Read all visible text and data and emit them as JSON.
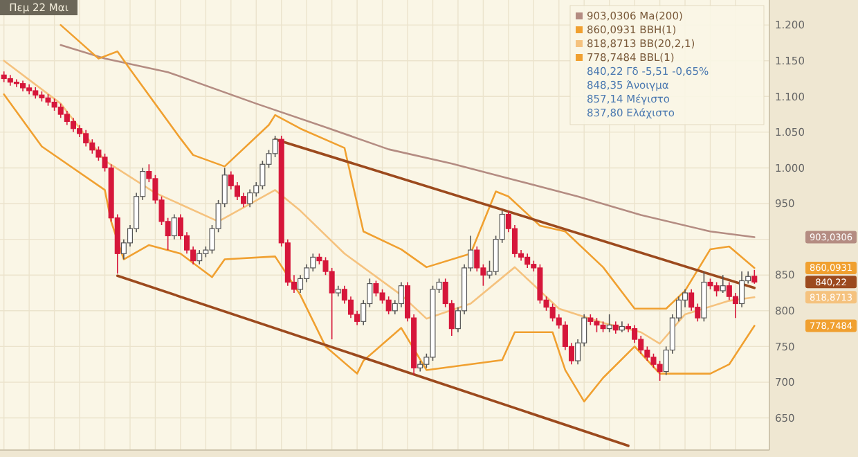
{
  "chart_data": {
    "type": "candlestick",
    "title": "Πεμ 22 Μαι",
    "categories": [
      null,
      null,
      null,
      null,
      null,
      null,
      null,
      null,
      null,
      null,
      null,
      null,
      null,
      null,
      null,
      null,
      null,
      null,
      null,
      null,
      null,
      null,
      null,
      null,
      null,
      null,
      null,
      null,
      null,
      null,
      null,
      null,
      null,
      null,
      null,
      null,
      null,
      null,
      null,
      null,
      null,
      null,
      null,
      null,
      null,
      null,
      null,
      null,
      null,
      null,
      null,
      null,
      null,
      null,
      null,
      null,
      null,
      null,
      null,
      null,
      null,
      null,
      null,
      null,
      null,
      null,
      null,
      null,
      null,
      null,
      null,
      null,
      null,
      null,
      null,
      null,
      null,
      null,
      null,
      null,
      null,
      null,
      null,
      null,
      null,
      null,
      null,
      null,
      null,
      null,
      null,
      null,
      null,
      null,
      null,
      null,
      null,
      null,
      null,
      null,
      null,
      null,
      null,
      null,
      null,
      null,
      null,
      null,
      null,
      null,
      null,
      null,
      null,
      null,
      null,
      null,
      null,
      null,
      null,
      null
    ],
    "ohlc": [
      [
        1130,
        1135,
        1120,
        1125
      ],
      [
        1125,
        1130,
        1115,
        1120
      ],
      [
        1120,
        1124,
        1113,
        1118
      ],
      [
        1118,
        1122,
        1107,
        1112
      ],
      [
        1112,
        1117,
        1103,
        1108
      ],
      [
        1108,
        1113,
        1097,
        1102
      ],
      [
        1102,
        1107,
        1093,
        1098
      ],
      [
        1098,
        1103,
        1087,
        1092
      ],
      [
        1092,
        1097,
        1080,
        1085
      ],
      [
        1085,
        1090,
        1070,
        1075
      ],
      [
        1075,
        1080,
        1060,
        1065
      ],
      [
        1065,
        1070,
        1050,
        1055
      ],
      [
        1055,
        1060,
        1043,
        1048
      ],
      [
        1048,
        1053,
        1030,
        1035
      ],
      [
        1035,
        1040,
        1020,
        1025
      ],
      [
        1025,
        1030,
        1010,
        1015
      ],
      [
        1015,
        1020,
        995,
        1000
      ],
      [
        1000,
        1005,
        925,
        930
      ],
      [
        930,
        935,
        852,
        880
      ],
      [
        880,
        900,
        872,
        895
      ],
      [
        895,
        920,
        890,
        915
      ],
      [
        915,
        965,
        910,
        960
      ],
      [
        960,
        1000,
        955,
        995
      ],
      [
        995,
        1005,
        980,
        985
      ],
      [
        985,
        990,
        950,
        955
      ],
      [
        955,
        960,
        920,
        925
      ],
      [
        925,
        930,
        885,
        905
      ],
      [
        905,
        935,
        900,
        930
      ],
      [
        930,
        935,
        900,
        905
      ],
      [
        905,
        910,
        880,
        885
      ],
      [
        885,
        890,
        865,
        870
      ],
      [
        870,
        885,
        865,
        880
      ],
      [
        880,
        890,
        875,
        885
      ],
      [
        885,
        920,
        880,
        915
      ],
      [
        915,
        955,
        910,
        950
      ],
      [
        950,
        1000,
        945,
        990
      ],
      [
        990,
        995,
        970,
        975
      ],
      [
        975,
        980,
        955,
        960
      ],
      [
        960,
        965,
        945,
        950
      ],
      [
        950,
        970,
        945,
        965
      ],
      [
        965,
        980,
        960,
        975
      ],
      [
        975,
        1010,
        970,
        1005
      ],
      [
        1005,
        1025,
        1000,
        1020
      ],
      [
        1020,
        1045,
        1015,
        1040
      ],
      [
        1040,
        1045,
        890,
        895
      ],
      [
        895,
        900,
        835,
        840
      ],
      [
        840,
        850,
        825,
        830
      ],
      [
        830,
        850,
        825,
        845
      ],
      [
        845,
        865,
        840,
        860
      ],
      [
        860,
        880,
        855,
        875
      ],
      [
        875,
        880,
        865,
        870
      ],
      [
        870,
        875,
        850,
        855
      ],
      [
        855,
        860,
        760,
        825
      ],
      [
        825,
        835,
        820,
        830
      ],
      [
        830,
        835,
        810,
        815
      ],
      [
        815,
        820,
        790,
        795
      ],
      [
        795,
        800,
        780,
        785
      ],
      [
        785,
        815,
        780,
        810
      ],
      [
        810,
        845,
        805,
        838
      ],
      [
        838,
        842,
        820,
        825
      ],
      [
        825,
        830,
        810,
        815
      ],
      [
        815,
        820,
        795,
        800
      ],
      [
        800,
        815,
        795,
        810
      ],
      [
        810,
        840,
        805,
        835
      ],
      [
        835,
        840,
        785,
        790
      ],
      [
        790,
        795,
        710,
        720
      ],
      [
        720,
        730,
        715,
        725
      ],
      [
        725,
        740,
        720,
        735
      ],
      [
        735,
        835,
        730,
        830
      ],
      [
        830,
        845,
        825,
        840
      ],
      [
        840,
        845,
        805,
        810
      ],
      [
        810,
        815,
        765,
        775
      ],
      [
        775,
        805,
        770,
        800
      ],
      [
        800,
        865,
        795,
        860
      ],
      [
        860,
        905,
        855,
        885
      ],
      [
        885,
        890,
        855,
        860
      ],
      [
        860,
        865,
        835,
        850
      ],
      [
        850,
        870,
        845,
        855
      ],
      [
        855,
        905,
        850,
        900
      ],
      [
        900,
        940,
        895,
        935
      ],
      [
        935,
        940,
        910,
        915
      ],
      [
        915,
        920,
        875,
        880
      ],
      [
        880,
        885,
        870,
        875
      ],
      [
        875,
        880,
        860,
        865
      ],
      [
        865,
        870,
        855,
        860
      ],
      [
        860,
        865,
        810,
        815
      ],
      [
        815,
        820,
        800,
        805
      ],
      [
        805,
        810,
        785,
        790
      ],
      [
        790,
        795,
        775,
        780
      ],
      [
        780,
        785,
        745,
        750
      ],
      [
        750,
        755,
        725,
        730
      ],
      [
        730,
        760,
        725,
        755
      ],
      [
        755,
        795,
        750,
        790
      ],
      [
        790,
        795,
        780,
        785
      ],
      [
        785,
        790,
        770,
        780
      ],
      [
        780,
        785,
        770,
        775
      ],
      [
        775,
        795,
        770,
        780
      ],
      [
        780,
        785,
        768,
        773
      ],
      [
        773,
        785,
        770,
        778
      ],
      [
        778,
        782,
        770,
        775
      ],
      [
        775,
        780,
        755,
        760
      ],
      [
        760,
        765,
        740,
        745
      ],
      [
        745,
        750,
        730,
        735
      ],
      [
        735,
        740,
        720,
        725
      ],
      [
        725,
        730,
        702,
        715
      ],
      [
        715,
        750,
        710,
        745
      ],
      [
        745,
        795,
        740,
        790
      ],
      [
        790,
        820,
        785,
        815
      ],
      [
        815,
        830,
        805,
        825
      ],
      [
        825,
        830,
        800,
        805
      ],
      [
        805,
        810,
        785,
        790
      ],
      [
        790,
        855,
        785,
        840
      ],
      [
        840,
        845,
        830,
        835
      ],
      [
        835,
        840,
        820,
        828
      ],
      [
        828,
        850,
        825,
        835
      ],
      [
        835,
        840,
        815,
        820
      ],
      [
        820,
        825,
        790,
        810
      ],
      [
        810,
        855,
        805,
        842
      ],
      [
        842,
        855,
        838,
        848
      ],
      [
        848.35,
        857.14,
        837.8,
        840.22
      ]
    ],
    "series": [
      {
        "type": "line",
        "name": "903,0306 Ma(200)",
        "color": "#b48c82",
        "values": [
          null,
          null,
          null,
          null,
          null,
          null,
          null,
          null,
          null,
          1172,
          null,
          null,
          null,
          null,
          null,
          null,
          1153,
          null,
          null,
          null,
          null,
          null,
          null,
          null,
          null,
          null,
          1134,
          null,
          null,
          null,
          null,
          null,
          null,
          null,
          null,
          null,
          null,
          null,
          null,
          null,
          1090,
          null,
          null,
          null,
          null,
          null,
          null,
          null,
          null,
          null,
          null,
          1057,
          null,
          null,
          null,
          null,
          null,
          null,
          null,
          null,
          null,
          1026,
          null,
          null,
          null,
          null,
          null,
          null,
          null,
          null,
          null,
          1006,
          null,
          null,
          null,
          null,
          null,
          null,
          null,
          null,
          null,
          983,
          null,
          null,
          null,
          null,
          null,
          null,
          null,
          null,
          null,
          960,
          null,
          null,
          null,
          null,
          null,
          null,
          null,
          null,
          null,
          934,
          null,
          null,
          null,
          null,
          null,
          null,
          null,
          null,
          null,
          null,
          911,
          null,
          null,
          null,
          null,
          null,
          null,
          903
        ]
      },
      {
        "type": "line",
        "name": "860,0931 BBH(1)",
        "color": "#f0a030",
        "values": [
          null,
          null,
          null,
          null,
          null,
          null,
          null,
          null,
          null,
          1200,
          null,
          null,
          null,
          null,
          null,
          1153,
          null,
          null,
          1163,
          null,
          1138,
          null,
          null,
          null,
          null,
          null,
          null,
          null,
          1041,
          null,
          1018,
          null,
          null,
          null,
          null,
          1002,
          null,
          null,
          null,
          null,
          null,
          null,
          1060,
          1074,
          null,
          null,
          null,
          1055,
          null,
          null,
          null,
          null,
          null,
          null,
          1028,
          null,
          null,
          911,
          null,
          null,
          null,
          null,
          null,
          886,
          null,
          null,
          null,
          861,
          null,
          null,
          null,
          null,
          null,
          null,
          880,
          null,
          null,
          null,
          967,
          null,
          960,
          null,
          null,
          null,
          null,
          919,
          null,
          null,
          null,
          911,
          null,
          null,
          null,
          null,
          null,
          861,
          null,
          null,
          null,
          null,
          803,
          null,
          null,
          null,
          null,
          803,
          null,
          null,
          828,
          null,
          null,
          null,
          886,
          null,
          null,
          890,
          null,
          null,
          null,
          860
        ]
      },
      {
        "type": "line",
        "name": "818,8713 BB(20,2,1)",
        "color": "#f5c27e",
        "values": [
          1150,
          null,
          null,
          null,
          null,
          null,
          null,
          null,
          null,
          1090,
          null,
          null,
          null,
          null,
          null,
          null,
          1010,
          null,
          null,
          null,
          null,
          null,
          null,
          null,
          965,
          null,
          null,
          null,
          null,
          null,
          null,
          null,
          null,
          null,
          925,
          null,
          null,
          null,
          null,
          null,
          null,
          null,
          null,
          969,
          null,
          null,
          null,
          940,
          null,
          null,
          null,
          null,
          null,
          null,
          880,
          null,
          null,
          null,
          null,
          null,
          null,
          null,
          null,
          822,
          null,
          null,
          null,
          789,
          null,
          null,
          null,
          null,
          null,
          null,
          810,
          null,
          null,
          null,
          null,
          null,
          null,
          861,
          null,
          null,
          null,
          null,
          null,
          null,
          803,
          null,
          null,
          null,
          null,
          null,
          null,
          783,
          null,
          null,
          null,
          null,
          null,
          770,
          null,
          null,
          754,
          null,
          null,
          null,
          795,
          null,
          null,
          null,
          null,
          null,
          null,
          814,
          null,
          null,
          null,
          819
        ]
      },
      {
        "type": "line",
        "name": "778,7484 BBL(1)",
        "color": "#f0a030",
        "values": [
          1103,
          null,
          null,
          null,
          null,
          null,
          1030,
          null,
          null,
          null,
          null,
          null,
          null,
          null,
          null,
          null,
          969,
          925,
          null,
          872,
          null,
          null,
          null,
          892,
          null,
          null,
          null,
          null,
          880,
          null,
          null,
          null,
          null,
          847,
          null,
          872,
          null,
          null,
          null,
          null,
          null,
          null,
          null,
          876,
          null,
          null,
          null,
          822,
          null,
          null,
          null,
          750,
          null,
          null,
          null,
          null,
          712,
          730,
          null,
          null,
          null,
          null,
          null,
          776,
          null,
          null,
          null,
          717,
          null,
          null,
          null,
          null,
          null,
          null,
          null,
          null,
          null,
          null,
          null,
          731,
          null,
          770,
          null,
          null,
          null,
          null,
          null,
          770,
          null,
          717,
          null,
          null,
          673,
          null,
          null,
          706,
          null,
          null,
          null,
          null,
          750,
          null,
          null,
          null,
          712,
          null,
          null,
          null,
          null,
          null,
          null,
          null,
          712,
          null,
          null,
          725,
          null,
          null,
          null,
          779
        ]
      },
      {
        "type": "line",
        "color": "#9c4a1e",
        "values": [
          null,
          null,
          null,
          null,
          null,
          null,
          null,
          null,
          null,
          null,
          null,
          null,
          null,
          null,
          null,
          null,
          null,
          null,
          null,
          null,
          null,
          null,
          null,
          null,
          null,
          null,
          null,
          null,
          null,
          null,
          null,
          null,
          null,
          null,
          null,
          null,
          null,
          null,
          null,
          null,
          null,
          null,
          null,
          1040,
          null,
          null,
          null,
          null,
          null,
          null,
          null,
          null,
          null,
          null,
          null,
          null,
          null,
          null,
          null,
          null,
          null,
          null,
          null,
          null,
          null,
          null,
          null,
          null,
          null,
          null,
          null,
          null,
          null,
          null,
          null,
          null,
          null,
          null,
          null,
          null,
          null,
          null,
          null,
          null,
          null,
          null,
          null,
          null,
          null,
          null,
          null,
          null,
          null,
          null,
          null,
          null,
          null,
          null,
          null,
          null,
          null,
          null,
          null,
          null,
          null,
          null,
          null,
          null,
          null,
          null,
          null,
          null,
          null,
          null,
          null,
          null,
          null,
          null,
          null,
          832
        ]
      },
      {
        "type": "line",
        "color": "#9c4a1e",
        "values": [
          null,
          null,
          null,
          null,
          null,
          null,
          null,
          null,
          null,
          null,
          null,
          null,
          null,
          null,
          null,
          null,
          null,
          null,
          849,
          null,
          null,
          null,
          null,
          null,
          null,
          null,
          null,
          null,
          null,
          null,
          null,
          null,
          null,
          null,
          null,
          null,
          null,
          null,
          null,
          null,
          null,
          null,
          null,
          null,
          null,
          null,
          null,
          null,
          null,
          null,
          null,
          null,
          null,
          null,
          null,
          null,
          null,
          null,
          null,
          null,
          null,
          null,
          null,
          null,
          null,
          null,
          null,
          null,
          null,
          null,
          null,
          null,
          null,
          null,
          null,
          null,
          null,
          null,
          null,
          null,
          null,
          null,
          null,
          null,
          null,
          null,
          null,
          null,
          null,
          null,
          null,
          null,
          null,
          null,
          null,
          null,
          null,
          null,
          null,
          611,
          null,
          null,
          null,
          null,
          null,
          null,
          null,
          null,
          null,
          null,
          null,
          null,
          null,
          null,
          null,
          null,
          null,
          null,
          null,
          null
        ]
      }
    ],
    "ylim": [
      605,
      1235
    ],
    "yticks": [
      650,
      700,
      750,
      800,
      850,
      {
        "value": 900,
        "label": null
      },
      950,
      {
        "value": 1000,
        "label": "1.000"
      },
      {
        "value": 1050,
        "label": "1.050"
      },
      {
        "value": 1100,
        "label": "1.100"
      },
      {
        "value": 1150,
        "label": "1.150"
      },
      {
        "value": 1200,
        "label": "1.200"
      }
    ],
    "tick_labels": "y",
    "grid": true,
    "legend": "top right",
    "annotations": [
      "840,22 Γδ -5,51 -0,65%",
      "848,35 Άνοιγμα",
      "857,14 Μέγιστο",
      "837,80 Ελάχιστο",
      "903,0306",
      "860,0931",
      "840,22",
      "818,8713",
      "778,7484"
    ]
  }
}
